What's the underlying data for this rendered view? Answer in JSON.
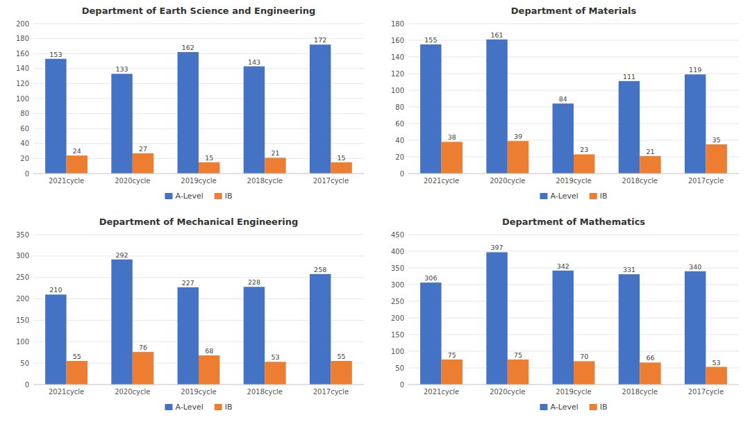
{
  "chart_data": [
    {
      "type": "bar",
      "title": "Department of Earth Science and Engineering",
      "categories": [
        "2021cycle",
        "2020cycle",
        "2019cycle",
        "2018cycle",
        "2017cycle"
      ],
      "series": [
        {
          "name": "A-Level",
          "color": "#4472C4",
          "values": [
            153,
            133,
            162,
            143,
            172
          ]
        },
        {
          "name": "IB",
          "color": "#ED7D31",
          "values": [
            24,
            27,
            15,
            21,
            15
          ]
        }
      ],
      "ylim": [
        0,
        200
      ],
      "yticks": [
        0,
        20,
        40,
        60,
        80,
        100,
        120,
        140,
        160,
        180,
        200
      ],
      "grid": true,
      "data_labels": true,
      "legend": "bottom"
    },
    {
      "type": "bar",
      "title": "Department of Materials",
      "categories": [
        "2021cycle",
        "2020cycle",
        "2019cycle",
        "2018cycle",
        "2017cycle"
      ],
      "series": [
        {
          "name": "A-Level",
          "color": "#4472C4",
          "values": [
            155,
            161,
            84,
            111,
            119
          ]
        },
        {
          "name": "IB",
          "color": "#ED7D31",
          "values": [
            38,
            39,
            23,
            21,
            35
          ]
        }
      ],
      "ylim": [
        0,
        180
      ],
      "yticks": [
        0,
        20,
        40,
        60,
        80,
        100,
        120,
        140,
        160,
        180
      ],
      "grid": true,
      "data_labels": true,
      "legend": "bottom"
    },
    {
      "type": "bar",
      "title": "Department of Mechanical Engineering",
      "categories": [
        "2021cycle",
        "2020cycle",
        "2019cycle",
        "2018cycle",
        "2017cycle"
      ],
      "series": [
        {
          "name": "A-Level",
          "color": "#4472C4",
          "values": [
            210,
            292,
            227,
            228,
            258
          ]
        },
        {
          "name": "IB",
          "color": "#ED7D31",
          "values": [
            55,
            76,
            68,
            53,
            55
          ]
        }
      ],
      "ylim": [
        0,
        350
      ],
      "yticks": [
        0,
        50,
        100,
        150,
        200,
        250,
        300,
        350
      ],
      "grid": true,
      "data_labels": true,
      "legend": "bottom"
    },
    {
      "type": "bar",
      "title": "Department of Mathematics",
      "categories": [
        "2021cycle",
        "2020cycle",
        "2019cycle",
        "2018cycle",
        "2017cycle"
      ],
      "series": [
        {
          "name": "A-Level",
          "color": "#4472C4",
          "values": [
            306,
            397,
            342,
            331,
            340
          ]
        },
        {
          "name": "IB",
          "color": "#ED7D31",
          "values": [
            75,
            75,
            70,
            66,
            53
          ]
        }
      ],
      "ylim": [
        0,
        450
      ],
      "yticks": [
        0,
        50,
        100,
        150,
        200,
        250,
        300,
        350,
        400,
        450
      ],
      "grid": true,
      "data_labels": true,
      "legend": "bottom"
    }
  ]
}
